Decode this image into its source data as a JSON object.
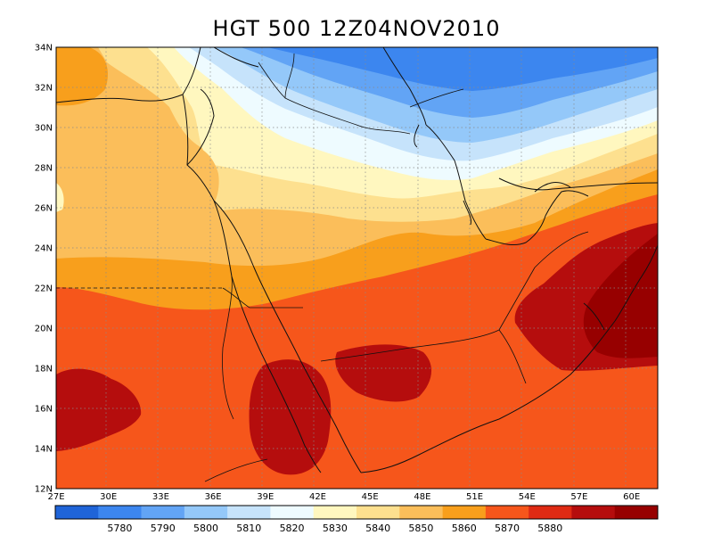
{
  "title": "HGT 500  12Z04NOV2010",
  "map": {
    "lon_labels": [
      "27E",
      "30E",
      "33E",
      "36E",
      "39E",
      "42E",
      "45E",
      "48E",
      "51E",
      "54E",
      "57E",
      "60E"
    ],
    "lat_labels": [
      "34N",
      "32N",
      "30N",
      "28N",
      "26N",
      "24N",
      "22N",
      "20N",
      "18N",
      "16N",
      "14N",
      "12N"
    ],
    "lon_range": [
      27,
      61.5
    ],
    "lat_range": [
      12,
      34
    ],
    "gridlines": "dotted"
  },
  "colorbar": {
    "colors": [
      "#1f64d8",
      "#3c86ef",
      "#62a4f5",
      "#94c8f9",
      "#c6e3fb",
      "#eefbff",
      "#fff7bf",
      "#fde08f",
      "#fbbe5a",
      "#f89f1c",
      "#f6561b",
      "#df2a13",
      "#b50d0d",
      "#970000"
    ],
    "labels": [
      "5780",
      "5790",
      "5800",
      "5810",
      "5820",
      "5830",
      "5840",
      "5850",
      "5860",
      "5870",
      "5880"
    ]
  }
}
